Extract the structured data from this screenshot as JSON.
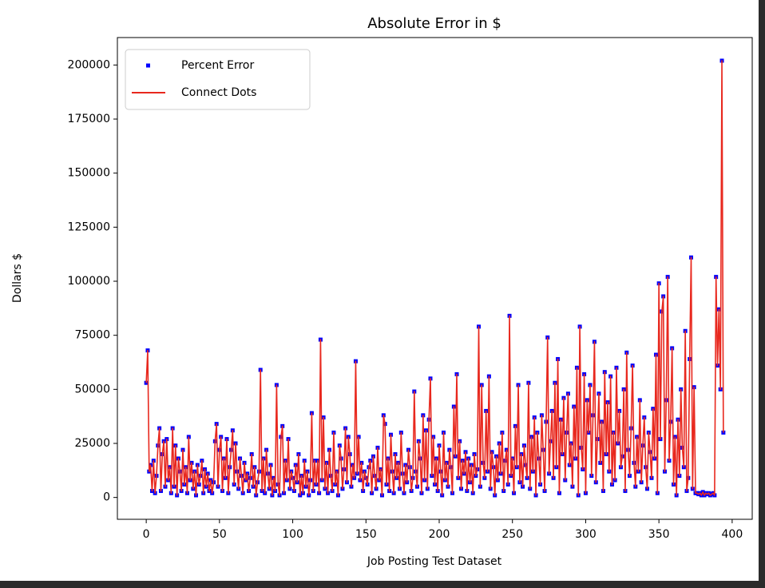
{
  "chart_data": {
    "type": "line",
    "title": "Absolute Error in $",
    "xlabel": "Job Posting Test Dataset",
    "ylabel": "Dollars $",
    "xlim": [
      -19.7,
      413.7
    ],
    "ylim": [
      -10100,
      212700
    ],
    "xticks": [
      0,
      50,
      100,
      150,
      200,
      250,
      300,
      350,
      400
    ],
    "yticks": [
      0,
      25000,
      50000,
      75000,
      100000,
      125000,
      150000,
      175000,
      200000
    ],
    "legend": {
      "loc": "upper left",
      "entries": [
        {
          "label": "Percent Error",
          "style": "marker",
          "color": "#0000ff"
        },
        {
          "label": "Connect Dots",
          "style": "line",
          "color": "#e8281e"
        }
      ]
    },
    "x": [
      0,
      1,
      2,
      3,
      4,
      5,
      6,
      7,
      8,
      9,
      10,
      11,
      12,
      13,
      14,
      15,
      16,
      17,
      18,
      19,
      20,
      21,
      22,
      23,
      24,
      25,
      26,
      27,
      28,
      29,
      30,
      31,
      32,
      33,
      34,
      35,
      36,
      37,
      38,
      39,
      40,
      41,
      42,
      43,
      44,
      45,
      46,
      47,
      48,
      49,
      50,
      51,
      52,
      53,
      54,
      55,
      56,
      57,
      58,
      59,
      60,
      61,
      62,
      63,
      64,
      65,
      66,
      67,
      68,
      69,
      70,
      71,
      72,
      73,
      74,
      75,
      76,
      77,
      78,
      79,
      80,
      81,
      82,
      83,
      84,
      85,
      86,
      87,
      88,
      89,
      90,
      91,
      92,
      93,
      94,
      95,
      96,
      97,
      98,
      99,
      100,
      101,
      102,
      103,
      104,
      105,
      106,
      107,
      108,
      109,
      110,
      111,
      112,
      113,
      114,
      115,
      116,
      117,
      118,
      119,
      120,
      121,
      122,
      123,
      124,
      125,
      126,
      127,
      128,
      129,
      130,
      131,
      132,
      133,
      134,
      135,
      136,
      137,
      138,
      139,
      140,
      141,
      142,
      143,
      144,
      145,
      146,
      147,
      148,
      149,
      150,
      151,
      152,
      153,
      154,
      155,
      156,
      157,
      158,
      159,
      160,
      161,
      162,
      163,
      164,
      165,
      166,
      167,
      168,
      169,
      170,
      171,
      172,
      173,
      174,
      175,
      176,
      177,
      178,
      179,
      180,
      181,
      182,
      183,
      184,
      185,
      186,
      187,
      188,
      189,
      190,
      191,
      192,
      193,
      194,
      195,
      196,
      197,
      198,
      199,
      200,
      201,
      202,
      203,
      204,
      205,
      206,
      207,
      208,
      209,
      210,
      211,
      212,
      213,
      214,
      215,
      216,
      217,
      218,
      219,
      220,
      221,
      222,
      223,
      224,
      225,
      226,
      227,
      228,
      229,
      230,
      231,
      232,
      233,
      234,
      235,
      236,
      237,
      238,
      239,
      240,
      241,
      242,
      243,
      244,
      245,
      246,
      247,
      248,
      249,
      250,
      251,
      252,
      253,
      254,
      255,
      256,
      257,
      258,
      259,
      260,
      261,
      262,
      263,
      264,
      265,
      266,
      267,
      268,
      269,
      270,
      271,
      272,
      273,
      274,
      275,
      276,
      277,
      278,
      279,
      280,
      281,
      282,
      283,
      284,
      285,
      286,
      287,
      288,
      289,
      290,
      291,
      292,
      293,
      294,
      295,
      296,
      297,
      298,
      299,
      300,
      301,
      302,
      303,
      304,
      305,
      306,
      307,
      308,
      309,
      310,
      311,
      312,
      313,
      314,
      315,
      316,
      317,
      318,
      319,
      320,
      321,
      322,
      323,
      324,
      325,
      326,
      327,
      328,
      329,
      330,
      331,
      332,
      333,
      334,
      335,
      336,
      337,
      338,
      339,
      340,
      341,
      342,
      343,
      344,
      345,
      346,
      347,
      348,
      349,
      350,
      351,
      352,
      353,
      354,
      355,
      356,
      357,
      358,
      359,
      360,
      361,
      362,
      363,
      364,
      365,
      366,
      367,
      368,
      369,
      370,
      371,
      372,
      373,
      374,
      375,
      376,
      377,
      378,
      379,
      380,
      381,
      382,
      383,
      384,
      385,
      386,
      387,
      388,
      389,
      390,
      391,
      392,
      393,
      394
    ],
    "values": [
      53000,
      68000,
      12000,
      15000,
      3000,
      17000,
      2000,
      10000,
      24000,
      32000,
      3000,
      20000,
      26000,
      5000,
      27000,
      8000,
      14000,
      2000,
      32000,
      5000,
      24000,
      1000,
      18000,
      12000,
      3000,
      22000,
      6000,
      14000,
      2000,
      28000,
      8000,
      16000,
      4000,
      12000,
      1000,
      15000,
      6000,
      10000,
      17000,
      2000,
      13000,
      5000,
      11000,
      3000,
      8000,
      2000,
      7000,
      26000,
      34000,
      5000,
      22000,
      28000,
      3000,
      18000,
      9000,
      27000,
      2000,
      14000,
      22000,
      31000,
      6000,
      25000,
      12000,
      4000,
      18000,
      10000,
      2000,
      16000,
      8000,
      11000,
      3000,
      9000,
      20000,
      5000,
      14000,
      1000,
      7000,
      12000,
      59000,
      3000,
      18000,
      2000,
      22000,
      11000,
      4000,
      15000,
      1000,
      9000,
      3000,
      52000,
      6000,
      1000,
      28000,
      33000,
      2000,
      17000,
      8000,
      27000,
      4000,
      12000,
      9000,
      3000,
      15000,
      7000,
      20000,
      1000,
      10000,
      2000,
      17000,
      5000,
      12000,
      1000,
      8000,
      39000,
      3000,
      17000,
      6000,
      17000,
      2000,
      73000,
      8000,
      37000,
      4000,
      16000,
      2000,
      22000,
      10000,
      3000,
      30000,
      6000,
      12000,
      1000,
      24000,
      18000,
      4000,
      13000,
      32000,
      7000,
      28000,
      20000,
      5000,
      15000,
      9000,
      63000,
      11000,
      28000,
      8000,
      16000,
      3000,
      12000,
      9000,
      6000,
      14000,
      17000,
      2000,
      19000,
      10000,
      4000,
      23000,
      8000,
      13000,
      1000,
      38000,
      34000,
      6000,
      18000,
      3000,
      29000,
      12000,
      2000,
      20000,
      9000,
      16000,
      4000,
      30000,
      11000,
      2000,
      15000,
      7000,
      22000,
      14000,
      3000,
      9000,
      49000,
      12000,
      5000,
      26000,
      18000,
      2000,
      38000,
      8000,
      31000,
      4000,
      36000,
      55000,
      10000,
      28000,
      6000,
      18000,
      3000,
      24000,
      12000,
      1000,
      30000,
      8000,
      16000,
      5000,
      22000,
      14000,
      2000,
      42000,
      19000,
      57000,
      9000,
      26000,
      4000,
      17000,
      11000,
      21000,
      3000,
      18000,
      7000,
      15000,
      2000,
      20000,
      10000,
      13000,
      79000,
      5000,
      52000,
      16000,
      9000,
      40000,
      12000,
      56000,
      4000,
      21000,
      14000,
      1000,
      19000,
      8000,
      25000,
      11000,
      30000,
      3000,
      17000,
      22000,
      6000,
      84000,
      10000,
      18000,
      2000,
      33000,
      14000,
      52000,
      7000,
      20000,
      5000,
      24000,
      15000,
      9000,
      53000,
      4000,
      28000,
      12000,
      37000,
      1000,
      30000,
      18000,
      6000,
      38000,
      22000,
      3000,
      35000,
      74000,
      11000,
      26000,
      40000,
      9000,
      53000,
      14000,
      64000,
      2000,
      36000,
      20000,
      46000,
      8000,
      30000,
      48000,
      15000,
      25000,
      5000,
      42000,
      18000,
      60000,
      1000,
      79000,
      23000,
      13000,
      57000,
      2000,
      45000,
      30000,
      52000,
      10000,
      38000,
      72000,
      7000,
      27000,
      48000,
      16000,
      35000,
      3000,
      58000,
      20000,
      44000,
      12000,
      56000,
      6000,
      30000,
      8000,
      60000,
      25000,
      40000,
      14000,
      19000,
      50000,
      3000,
      67000,
      22000,
      10000,
      32000,
      61000,
      16000,
      5000,
      28000,
      12000,
      45000,
      7000,
      24000,
      37000,
      14000,
      4000,
      30000,
      21000,
      9000,
      41000,
      18000,
      66000,
      2000,
      99000,
      27000,
      86000,
      93000,
      12000,
      45000,
      102000,
      17000,
      35000,
      69000,
      6000,
      28000,
      1000,
      36000,
      10000,
      50000,
      23000,
      14000,
      77000,
      3000,
      9000,
      64000,
      111000,
      4000,
      51000,
      2000,
      2000,
      1500,
      2000,
      1000,
      2500,
      1000,
      2000,
      1500,
      2000,
      1000,
      1500,
      2000,
      1000,
      102000,
      61000,
      87000,
      50000,
      202000,
      30000
    ]
  }
}
